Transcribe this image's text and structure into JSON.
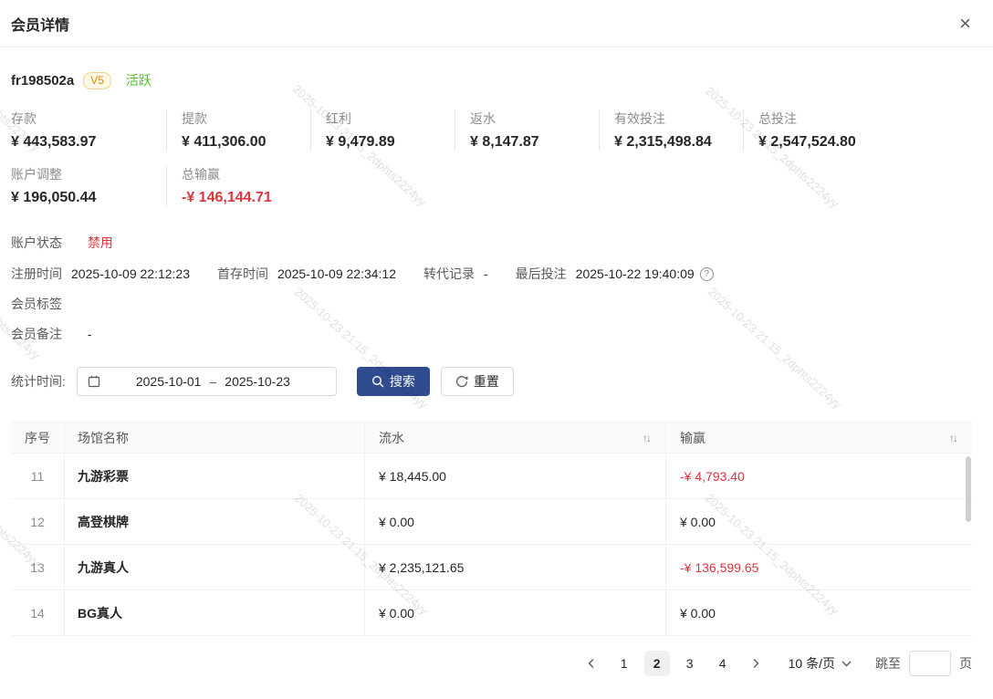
{
  "header": {
    "title": "会员详情",
    "close_glyph": "×"
  },
  "member": {
    "id": "fr198502a",
    "level_badge": "V5",
    "status": "活跃"
  },
  "stats": {
    "items": [
      {
        "label": "存款",
        "value": "¥ 443,583.97"
      },
      {
        "label": "提款",
        "value": "¥ 411,306.00"
      },
      {
        "label": "红利",
        "value": "¥ 9,479.89"
      },
      {
        "label": "返水",
        "value": "¥ 8,147.87"
      },
      {
        "label": "有效投注",
        "value": "¥ 2,315,498.84"
      },
      {
        "label": "总投注",
        "value": "¥ 2,547,524.80"
      },
      {
        "label": "账户调整",
        "value": "¥ 196,050.44"
      },
      {
        "label": "总输赢",
        "value": "-¥ 146,144.71"
      }
    ]
  },
  "account_status": {
    "label": "账户状态",
    "value": "禁用"
  },
  "meta": {
    "help_glyph": "?",
    "items": [
      {
        "label": "注册时间",
        "value": "2025-10-09 22:12:23"
      },
      {
        "label": "首存时间",
        "value": "2025-10-09 22:34:12"
      },
      {
        "label": "转代记录",
        "value": "-"
      },
      {
        "label": "最后投注",
        "value": "2025-10-22 19:40:09"
      }
    ]
  },
  "tags": {
    "label": "会员标签"
  },
  "remark": {
    "label": "会员备注",
    "value": "-"
  },
  "filter": {
    "label": "统计时间:",
    "date_start": "2025-10-01",
    "date_separator": "–",
    "date_end": "2025-10-23",
    "search_label": "搜索",
    "reset_label": "重置"
  },
  "table": {
    "columns": {
      "seq": "序号",
      "venue": "场馆名称",
      "turnover": "流水",
      "winloss": "输赢"
    },
    "sort_glyph": "↑↓",
    "rows": [
      {
        "seq": "11",
        "venue": "九游彩票",
        "turnover": "¥ 18,445.00",
        "winloss": "-¥ 4,793.40"
      },
      {
        "seq": "12",
        "venue": "高登棋牌",
        "turnover": "¥ 0.00",
        "winloss": "¥ 0.00"
      },
      {
        "seq": "13",
        "venue": "九游真人",
        "turnover": "¥ 2,235,121.65",
        "winloss": "-¥ 136,599.65"
      },
      {
        "seq": "14",
        "venue": "BG真人",
        "turnover": "¥ 0.00",
        "winloss": "¥ 0.00"
      }
    ]
  },
  "pagination": {
    "pages": [
      "1",
      "2",
      "3",
      "4"
    ],
    "active_page": "2",
    "page_size": "10 条/页",
    "jump_label": "跳至",
    "jump_suffix": "页"
  },
  "watermark": {
    "text": "2025-10-23 21:15_2dphts2224yy"
  },
  "colors": {
    "primary": "#2e4c8f",
    "danger": "#d9363e",
    "success": "#52c41a",
    "gold": "#d48806"
  }
}
